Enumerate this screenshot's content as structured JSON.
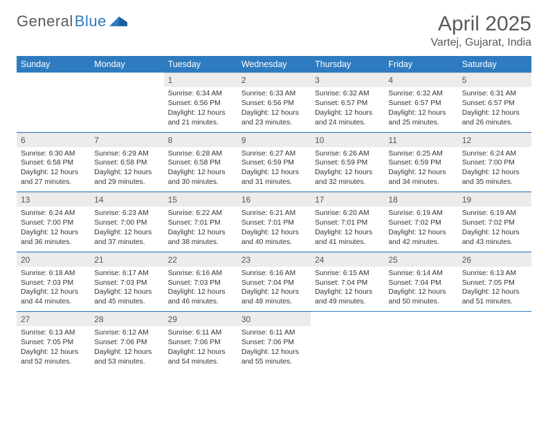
{
  "brand": {
    "part1": "General",
    "part2": "Blue"
  },
  "title": "April 2025",
  "location": "Vartej, Gujarat, India",
  "colors": {
    "header_bar": "#2f7bbf",
    "daynum_bg": "#ececec",
    "rule": "#2f7bbf",
    "page_bg": "#ffffff",
    "text": "#333333",
    "muted": "#5a5a5a"
  },
  "typography": {
    "title_fontsize": 30,
    "location_fontsize": 16,
    "dow_fontsize": 12.5,
    "daynum_fontsize": 12,
    "body_fontsize": 10.3
  },
  "dow": [
    "Sunday",
    "Monday",
    "Tuesday",
    "Wednesday",
    "Thursday",
    "Friday",
    "Saturday"
  ],
  "weeks": [
    [
      {
        "n": "",
        "sunrise": "",
        "sunset": "",
        "daylight": ""
      },
      {
        "n": "",
        "sunrise": "",
        "sunset": "",
        "daylight": ""
      },
      {
        "n": "1",
        "sunrise": "Sunrise: 6:34 AM",
        "sunset": "Sunset: 6:56 PM",
        "daylight": "Daylight: 12 hours and 21 minutes."
      },
      {
        "n": "2",
        "sunrise": "Sunrise: 6:33 AM",
        "sunset": "Sunset: 6:56 PM",
        "daylight": "Daylight: 12 hours and 23 minutes."
      },
      {
        "n": "3",
        "sunrise": "Sunrise: 6:32 AM",
        "sunset": "Sunset: 6:57 PM",
        "daylight": "Daylight: 12 hours and 24 minutes."
      },
      {
        "n": "4",
        "sunrise": "Sunrise: 6:32 AM",
        "sunset": "Sunset: 6:57 PM",
        "daylight": "Daylight: 12 hours and 25 minutes."
      },
      {
        "n": "5",
        "sunrise": "Sunrise: 6:31 AM",
        "sunset": "Sunset: 6:57 PM",
        "daylight": "Daylight: 12 hours and 26 minutes."
      }
    ],
    [
      {
        "n": "6",
        "sunrise": "Sunrise: 6:30 AM",
        "sunset": "Sunset: 6:58 PM",
        "daylight": "Daylight: 12 hours and 27 minutes."
      },
      {
        "n": "7",
        "sunrise": "Sunrise: 6:29 AM",
        "sunset": "Sunset: 6:58 PM",
        "daylight": "Daylight: 12 hours and 29 minutes."
      },
      {
        "n": "8",
        "sunrise": "Sunrise: 6:28 AM",
        "sunset": "Sunset: 6:58 PM",
        "daylight": "Daylight: 12 hours and 30 minutes."
      },
      {
        "n": "9",
        "sunrise": "Sunrise: 6:27 AM",
        "sunset": "Sunset: 6:59 PM",
        "daylight": "Daylight: 12 hours and 31 minutes."
      },
      {
        "n": "10",
        "sunrise": "Sunrise: 6:26 AM",
        "sunset": "Sunset: 6:59 PM",
        "daylight": "Daylight: 12 hours and 32 minutes."
      },
      {
        "n": "11",
        "sunrise": "Sunrise: 6:25 AM",
        "sunset": "Sunset: 6:59 PM",
        "daylight": "Daylight: 12 hours and 34 minutes."
      },
      {
        "n": "12",
        "sunrise": "Sunrise: 6:24 AM",
        "sunset": "Sunset: 7:00 PM",
        "daylight": "Daylight: 12 hours and 35 minutes."
      }
    ],
    [
      {
        "n": "13",
        "sunrise": "Sunrise: 6:24 AM",
        "sunset": "Sunset: 7:00 PM",
        "daylight": "Daylight: 12 hours and 36 minutes."
      },
      {
        "n": "14",
        "sunrise": "Sunrise: 6:23 AM",
        "sunset": "Sunset: 7:00 PM",
        "daylight": "Daylight: 12 hours and 37 minutes."
      },
      {
        "n": "15",
        "sunrise": "Sunrise: 6:22 AM",
        "sunset": "Sunset: 7:01 PM",
        "daylight": "Daylight: 12 hours and 38 minutes."
      },
      {
        "n": "16",
        "sunrise": "Sunrise: 6:21 AM",
        "sunset": "Sunset: 7:01 PM",
        "daylight": "Daylight: 12 hours and 40 minutes."
      },
      {
        "n": "17",
        "sunrise": "Sunrise: 6:20 AM",
        "sunset": "Sunset: 7:01 PM",
        "daylight": "Daylight: 12 hours and 41 minutes."
      },
      {
        "n": "18",
        "sunrise": "Sunrise: 6:19 AM",
        "sunset": "Sunset: 7:02 PM",
        "daylight": "Daylight: 12 hours and 42 minutes."
      },
      {
        "n": "19",
        "sunrise": "Sunrise: 6:19 AM",
        "sunset": "Sunset: 7:02 PM",
        "daylight": "Daylight: 12 hours and 43 minutes."
      }
    ],
    [
      {
        "n": "20",
        "sunrise": "Sunrise: 6:18 AM",
        "sunset": "Sunset: 7:03 PM",
        "daylight": "Daylight: 12 hours and 44 minutes."
      },
      {
        "n": "21",
        "sunrise": "Sunrise: 6:17 AM",
        "sunset": "Sunset: 7:03 PM",
        "daylight": "Daylight: 12 hours and 45 minutes."
      },
      {
        "n": "22",
        "sunrise": "Sunrise: 6:16 AM",
        "sunset": "Sunset: 7:03 PM",
        "daylight": "Daylight: 12 hours and 46 minutes."
      },
      {
        "n": "23",
        "sunrise": "Sunrise: 6:16 AM",
        "sunset": "Sunset: 7:04 PM",
        "daylight": "Daylight: 12 hours and 48 minutes."
      },
      {
        "n": "24",
        "sunrise": "Sunrise: 6:15 AM",
        "sunset": "Sunset: 7:04 PM",
        "daylight": "Daylight: 12 hours and 49 minutes."
      },
      {
        "n": "25",
        "sunrise": "Sunrise: 6:14 AM",
        "sunset": "Sunset: 7:04 PM",
        "daylight": "Daylight: 12 hours and 50 minutes."
      },
      {
        "n": "26",
        "sunrise": "Sunrise: 6:13 AM",
        "sunset": "Sunset: 7:05 PM",
        "daylight": "Daylight: 12 hours and 51 minutes."
      }
    ],
    [
      {
        "n": "27",
        "sunrise": "Sunrise: 6:13 AM",
        "sunset": "Sunset: 7:05 PM",
        "daylight": "Daylight: 12 hours and 52 minutes."
      },
      {
        "n": "28",
        "sunrise": "Sunrise: 6:12 AM",
        "sunset": "Sunset: 7:06 PM",
        "daylight": "Daylight: 12 hours and 53 minutes."
      },
      {
        "n": "29",
        "sunrise": "Sunrise: 6:11 AM",
        "sunset": "Sunset: 7:06 PM",
        "daylight": "Daylight: 12 hours and 54 minutes."
      },
      {
        "n": "30",
        "sunrise": "Sunrise: 6:11 AM",
        "sunset": "Sunset: 7:06 PM",
        "daylight": "Daylight: 12 hours and 55 minutes."
      },
      {
        "n": "",
        "sunrise": "",
        "sunset": "",
        "daylight": ""
      },
      {
        "n": "",
        "sunrise": "",
        "sunset": "",
        "daylight": ""
      },
      {
        "n": "",
        "sunrise": "",
        "sunset": "",
        "daylight": ""
      }
    ]
  ]
}
